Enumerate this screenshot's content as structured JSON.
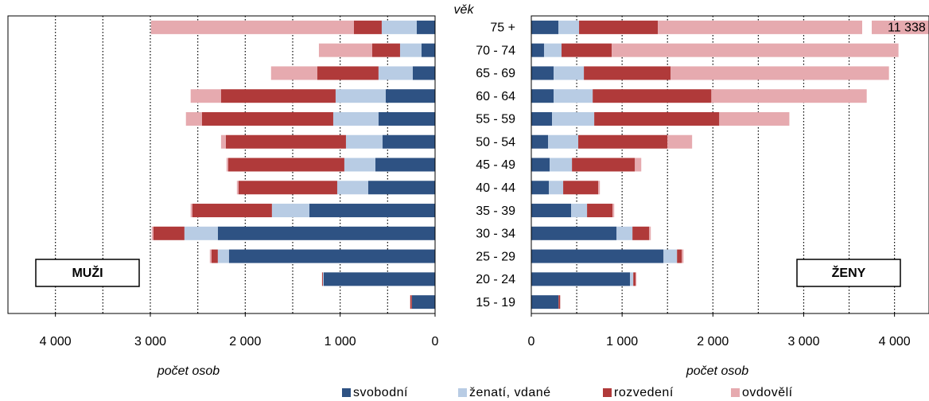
{
  "chart_data": {
    "type": "pyramid",
    "ylabel": "věk",
    "categories": [
      "75 +",
      "70 - 74",
      "65 - 69",
      "60 - 64",
      "55 - 59",
      "50 - 54",
      "45 - 49",
      "40 - 44",
      "35 - 39",
      "30 - 34",
      "25 - 29",
      "20 - 24",
      "15 - 19"
    ],
    "series": [
      {
        "name": "svobodní",
        "color": "#2e5283"
      },
      {
        "name": "ženatí, vdané",
        "color": "#b8cce4"
      },
      {
        "name": "rozvedení",
        "color": "#b03a3a"
      },
      {
        "name": "ovdovělí",
        "color": "#e6aaaf"
      }
    ],
    "panels": [
      {
        "label": "MUŽI",
        "xlabel": "počet osob",
        "direction": "left",
        "xlim": [
          0,
          4500
        ],
        "xticks": [
          {
            "value": 4000,
            "label": "4 000"
          },
          {
            "value": 3000,
            "label": "3 000"
          },
          {
            "value": 2000,
            "label": "2 000"
          },
          {
            "value": 1000,
            "label": "1 000"
          },
          0
        ],
        "xgrid": [
          500,
          1000,
          1500,
          2000,
          2500,
          3000,
          3500,
          4000
        ],
        "values": [
          [
            193,
            143,
            235,
            520,
            595,
            553,
            629,
            704,
            1325,
            2289,
            2172,
            1174,
            243
          ],
          [
            369,
            226,
            361,
            528,
            478,
            386,
            327,
            327,
            394,
            352,
            117,
            8,
            2
          ],
          [
            293,
            293,
            646,
            1208,
            1384,
            1266,
            1224,
            1040,
            839,
            327,
            67,
            8,
            17
          ],
          [
            2138,
            562,
            486,
            319,
            168,
            50,
            17,
            17,
            17,
            17,
            17,
            2,
            0
          ]
        ]
      },
      {
        "label": "ŽENY",
        "xlabel": "počet osob",
        "direction": "right",
        "xlim": [
          0,
          4380
        ],
        "xticks": [
          0,
          {
            "value": 1000,
            "label": "1 000"
          },
          {
            "value": 2000,
            "label": "2 000"
          },
          {
            "value": 3000,
            "label": "3 000"
          },
          {
            "value": 4000,
            "label": "4 000"
          }
        ],
        "xgrid": [
          500,
          1000,
          1500,
          2000,
          2500,
          3000,
          3500,
          4000
        ],
        "values": [
          [
            298,
            140,
            246,
            246,
            228,
            184,
            202,
            193,
            439,
            939,
            1456,
            1088,
            298
          ],
          [
            228,
            193,
            333,
            430,
            465,
            333,
            246,
            158,
            175,
            175,
            149,
            35,
            2
          ],
          [
            868,
            553,
            956,
            1307,
            1377,
            982,
            693,
            386,
            281,
            184,
            53,
            26,
            18
          ],
          [
            9944,
            3158,
            2404,
            1711,
            772,
            272,
            70,
            18,
            18,
            18,
            18,
            9,
            0
          ]
        ],
        "annotation": {
          "text": "11 338",
          "value": 11338
        }
      }
    ]
  }
}
